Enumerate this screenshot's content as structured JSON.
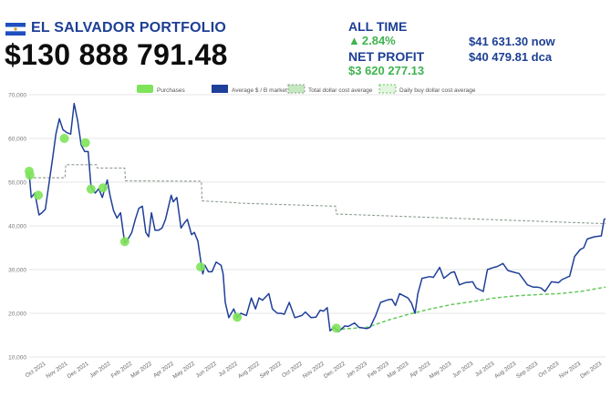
{
  "header": {
    "title": "EL SALVADOR PORTFOLIO",
    "total_value": "$130 888 791.48",
    "all_time_label": "ALL TIME",
    "all_time_change": "2.84%",
    "net_profit_label": "NET PROFIT",
    "net_profit_value": "$3 620 277.13",
    "price_now": "$41 631.30 now",
    "price_dca": "$40 479.81 dca",
    "flag_colors": {
      "blue": "#1f4fbf",
      "white": "#ffffff"
    }
  },
  "colors": {
    "accent_blue": "#1d3f94",
    "positive_green": "#3fb34f",
    "purchase_marker": "#7ee35a",
    "price_line": "#1f3f99",
    "total_dca_line": "#8e9e8e",
    "daily_dca_line": "#63c95a"
  },
  "chart_data": {
    "type": "line",
    "legend": [
      "Purchases",
      "Average $ / B market price",
      "Total dollar cost average",
      "Daily buy dollar cost average"
    ],
    "legend_position": "top",
    "x_tick_labels": [
      "Oct 2021",
      "Nov 2021",
      "Dec 2021",
      "Jan 2022",
      "Feb 2022",
      "Mar 2022",
      "Apr 2022",
      "May 2022",
      "Jun 2022",
      "Jul 2022",
      "Aug 2022",
      "Sep 2022",
      "Oct 2022",
      "Nov 2022",
      "Dec 2022",
      "Jan 2023",
      "Feb 2023",
      "Mar 2023",
      "Apr 2023",
      "May 2023",
      "Jun 2023",
      "Jul 2023",
      "Aug 2023",
      "Sep 2023",
      "Oct 2023",
      "Nov 2023",
      "Dec 2023"
    ],
    "y_tick_labels": [
      "10,000",
      "20,000",
      "30,000",
      "40,000",
      "50,000",
      "60,000",
      "70,000"
    ],
    "ylim": [
      10000,
      70000
    ],
    "grid": "horizontal",
    "series": [
      {
        "name": "Average $ / B market price",
        "style": "solid",
        "points": [
          [
            "2021-09-07",
            52000
          ],
          [
            "2021-09-10",
            46500
          ],
          [
            "2021-09-15",
            47500
          ],
          [
            "2021-09-21",
            42500
          ],
          [
            "2021-09-25",
            43000
          ],
          [
            "2021-09-30",
            43800
          ],
          [
            "2021-10-05",
            49500
          ],
          [
            "2021-10-10",
            55000
          ],
          [
            "2021-10-15",
            61000
          ],
          [
            "2021-10-20",
            64500
          ],
          [
            "2021-10-25",
            62000
          ],
          [
            "2021-10-31",
            61300
          ],
          [
            "2021-11-05",
            61000
          ],
          [
            "2021-11-10",
            68000
          ],
          [
            "2021-11-15",
            64000
          ],
          [
            "2021-11-20",
            58500
          ],
          [
            "2021-11-25",
            57000
          ],
          [
            "2021-11-30",
            57000
          ],
          [
            "2021-12-04",
            49000
          ],
          [
            "2021-12-10",
            47500
          ],
          [
            "2021-12-15",
            48500
          ],
          [
            "2021-12-20",
            46500
          ],
          [
            "2021-12-27",
            50500
          ],
          [
            "2021-12-31",
            47000
          ],
          [
            "2022-01-05",
            43500
          ],
          [
            "2022-01-10",
            41800
          ],
          [
            "2022-01-15",
            43000
          ],
          [
            "2022-01-21",
            36000
          ],
          [
            "2022-01-25",
            36800
          ],
          [
            "2022-01-31",
            38500
          ],
          [
            "2022-02-05",
            41500
          ],
          [
            "2022-02-10",
            44000
          ],
          [
            "2022-02-15",
            44500
          ],
          [
            "2022-02-20",
            38500
          ],
          [
            "2022-02-24",
            37500
          ],
          [
            "2022-02-28",
            43000
          ],
          [
            "2022-03-05",
            39000
          ],
          [
            "2022-03-10",
            39000
          ],
          [
            "2022-03-15",
            39500
          ],
          [
            "2022-03-20",
            41500
          ],
          [
            "2022-03-28",
            47000
          ],
          [
            "2022-03-31",
            45500
          ],
          [
            "2022-04-05",
            46500
          ],
          [
            "2022-04-11",
            39500
          ],
          [
            "2022-04-15",
            40500
          ],
          [
            "2022-04-20",
            41500
          ],
          [
            "2022-04-26",
            38000
          ],
          [
            "2022-04-30",
            38500
          ],
          [
            "2022-05-05",
            36500
          ],
          [
            "2022-05-10",
            31000
          ],
          [
            "2022-05-12",
            29000
          ],
          [
            "2022-05-15",
            31000
          ],
          [
            "2022-05-20",
            29500
          ],
          [
            "2022-05-25",
            29500
          ],
          [
            "2022-05-31",
            31700
          ],
          [
            "2022-06-07",
            31000
          ],
          [
            "2022-06-10",
            29000
          ],
          [
            "2022-06-13",
            22500
          ],
          [
            "2022-06-18",
            19000
          ],
          [
            "2022-06-25",
            21000
          ],
          [
            "2022-06-30",
            19000
          ],
          [
            "2022-07-05",
            20000
          ],
          [
            "2022-07-13",
            19500
          ],
          [
            "2022-07-20",
            23500
          ],
          [
            "2022-07-26",
            21000
          ],
          [
            "2022-07-31",
            23500
          ],
          [
            "2022-08-05",
            23000
          ],
          [
            "2022-08-14",
            24500
          ],
          [
            "2022-08-19",
            21000
          ],
          [
            "2022-08-26",
            20000
          ],
          [
            "2022-08-31",
            20000
          ],
          [
            "2022-09-05",
            19800
          ],
          [
            "2022-09-12",
            22500
          ],
          [
            "2022-09-20",
            19000
          ],
          [
            "2022-09-30",
            19500
          ],
          [
            "2022-10-05",
            20300
          ],
          [
            "2022-10-13",
            19000
          ],
          [
            "2022-10-20",
            19100
          ],
          [
            "2022-10-26",
            20700
          ],
          [
            "2022-10-31",
            20500
          ],
          [
            "2022-11-05",
            21300
          ],
          [
            "2022-11-09",
            16000
          ],
          [
            "2022-11-15",
            16800
          ],
          [
            "2022-11-21",
            15800
          ],
          [
            "2022-11-30",
            17100
          ],
          [
            "2022-12-05",
            17000
          ],
          [
            "2022-12-14",
            17800
          ],
          [
            "2022-12-20",
            16800
          ],
          [
            "2022-12-31",
            16500
          ],
          [
            "2023-01-05",
            16800
          ],
          [
            "2023-01-13",
            19500
          ],
          [
            "2023-01-20",
            22500
          ],
          [
            "2023-01-31",
            23100
          ],
          [
            "2023-02-05",
            23200
          ],
          [
            "2023-02-10",
            21800
          ],
          [
            "2023-02-16",
            24500
          ],
          [
            "2023-02-28",
            23500
          ],
          [
            "2023-03-05",
            22300
          ],
          [
            "2023-03-10",
            20000
          ],
          [
            "2023-03-14",
            24500
          ],
          [
            "2023-03-20",
            28000
          ],
          [
            "2023-03-31",
            28400
          ],
          [
            "2023-04-05",
            28200
          ],
          [
            "2023-04-14",
            30500
          ],
          [
            "2023-04-20",
            28000
          ],
          [
            "2023-04-30",
            29300
          ],
          [
            "2023-05-05",
            29500
          ],
          [
            "2023-05-12",
            26500
          ],
          [
            "2023-05-20",
            27000
          ],
          [
            "2023-05-31",
            27200
          ],
          [
            "2023-06-05",
            25800
          ],
          [
            "2023-06-15",
            25000
          ],
          [
            "2023-06-21",
            30000
          ],
          [
            "2023-06-30",
            30500
          ],
          [
            "2023-07-05",
            30700
          ],
          [
            "2023-07-13",
            31400
          ],
          [
            "2023-07-20",
            29800
          ],
          [
            "2023-07-31",
            29300
          ],
          [
            "2023-08-05",
            29100
          ],
          [
            "2023-08-17",
            26500
          ],
          [
            "2023-08-25",
            26000
          ],
          [
            "2023-08-31",
            26000
          ],
          [
            "2023-09-05",
            25800
          ],
          [
            "2023-09-11",
            25000
          ],
          [
            "2023-09-20",
            27200
          ],
          [
            "2023-09-30",
            27000
          ],
          [
            "2023-10-05",
            27700
          ],
          [
            "2023-10-16",
            28500
          ],
          [
            "2023-10-23",
            33000
          ],
          [
            "2023-10-31",
            34600
          ],
          [
            "2023-11-05",
            35000
          ],
          [
            "2023-11-10",
            37000
          ],
          [
            "2023-11-20",
            37500
          ],
          [
            "2023-11-30",
            37700
          ],
          [
            "2023-12-04",
            41500
          ],
          [
            "2023-12-06",
            41600
          ]
        ]
      },
      {
        "name": "Total dollar cost average",
        "style": "dashed",
        "points": [
          [
            "2021-09-07",
            51000
          ],
          [
            "2021-10-28",
            51000
          ],
          [
            "2021-10-29",
            54000
          ],
          [
            "2021-12-12",
            54000
          ],
          [
            "2021-12-13",
            53200
          ],
          [
            "2022-01-21",
            53200
          ],
          [
            "2022-01-22",
            50300
          ],
          [
            "2022-05-10",
            50200
          ],
          [
            "2022-05-11",
            45700
          ],
          [
            "2022-06-30",
            45300
          ],
          [
            "2022-07-01",
            45200
          ],
          [
            "2022-11-17",
            44500
          ],
          [
            "2022-11-18",
            42700
          ],
          [
            "2023-12-06",
            40500
          ]
        ]
      },
      {
        "name": "Daily buy dollar cost average",
        "style": "dashed",
        "points": [
          [
            "2022-11-17",
            16300
          ],
          [
            "2023-01-01",
            16800
          ],
          [
            "2023-02-01",
            18500
          ],
          [
            "2023-03-01",
            19800
          ],
          [
            "2023-04-01",
            21000
          ],
          [
            "2023-05-01",
            22000
          ],
          [
            "2023-06-01",
            22700
          ],
          [
            "2023-07-01",
            23500
          ],
          [
            "2023-08-01",
            24000
          ],
          [
            "2023-09-01",
            24300
          ],
          [
            "2023-10-01",
            24500
          ],
          [
            "2023-11-01",
            25000
          ],
          [
            "2023-12-06",
            26000
          ]
        ]
      }
    ],
    "purchases": [
      [
        "2021-09-07",
        52500
      ],
      [
        "2021-09-08",
        51600
      ],
      [
        "2021-09-20",
        47000
      ],
      [
        "2021-10-27",
        60000
      ],
      [
        "2021-11-26",
        59000
      ],
      [
        "2021-12-04",
        48400
      ],
      [
        "2021-12-21",
        48700
      ],
      [
        "2022-01-21",
        36400
      ],
      [
        "2022-05-09",
        30600
      ],
      [
        "2022-06-30",
        19100
      ],
      [
        "2022-11-18",
        16600
      ]
    ]
  }
}
